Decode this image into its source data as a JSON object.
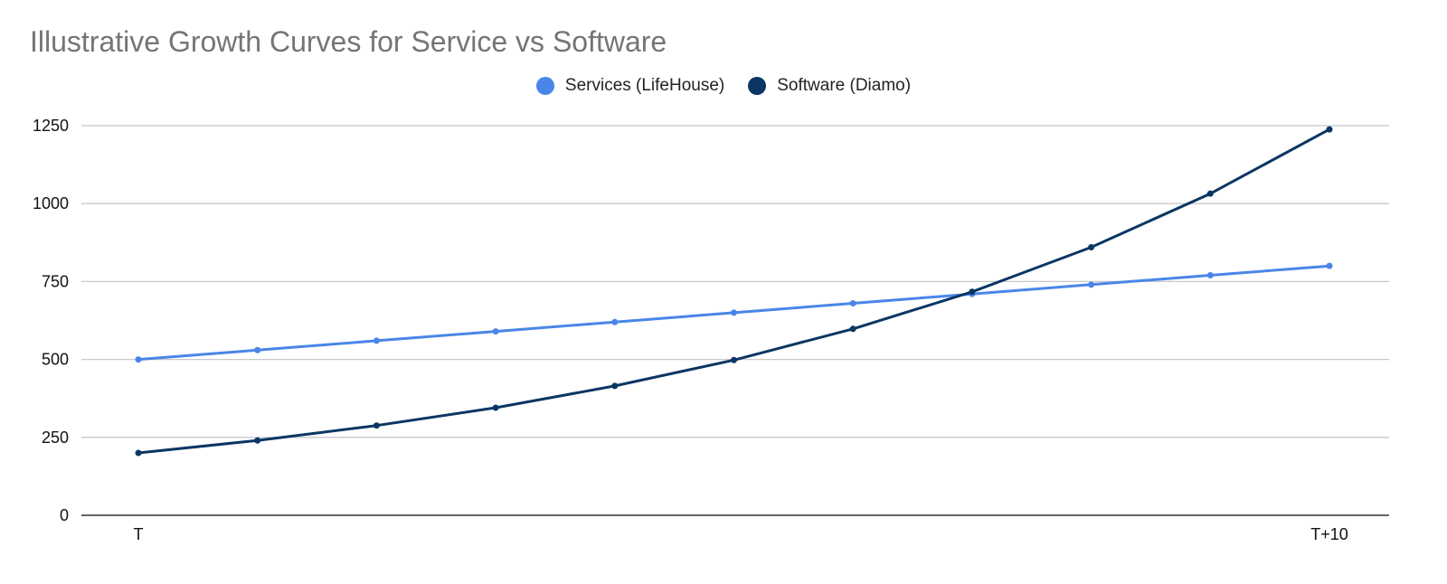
{
  "chart_data": {
    "type": "line",
    "title": "Illustrative Growth Curves for Service vs Software",
    "xlabel": "",
    "ylabel": "",
    "x": [
      0,
      1,
      2,
      3,
      4,
      5,
      6,
      7,
      8,
      9,
      10
    ],
    "x_tick_labels": [
      "T",
      "",
      "",
      "",
      "",
      "",
      "",
      "",
      "",
      "",
      "T+10"
    ],
    "y_ticks": [
      0,
      250,
      500,
      750,
      1000,
      1250
    ],
    "ylim": [
      0,
      1250
    ],
    "grid": true,
    "legend_position": "top-center",
    "series": [
      {
        "name": "Services (LifeHouse)",
        "color": "#4a86e8",
        "values": [
          500,
          530,
          560,
          590,
          620,
          650,
          680,
          710,
          740,
          770,
          800
        ]
      },
      {
        "name": "Software (Diamo)",
        "color": "#0b3663",
        "values": [
          200,
          240,
          288,
          345,
          415,
          498,
          598,
          717,
          860,
          1032,
          1238
        ]
      }
    ]
  }
}
